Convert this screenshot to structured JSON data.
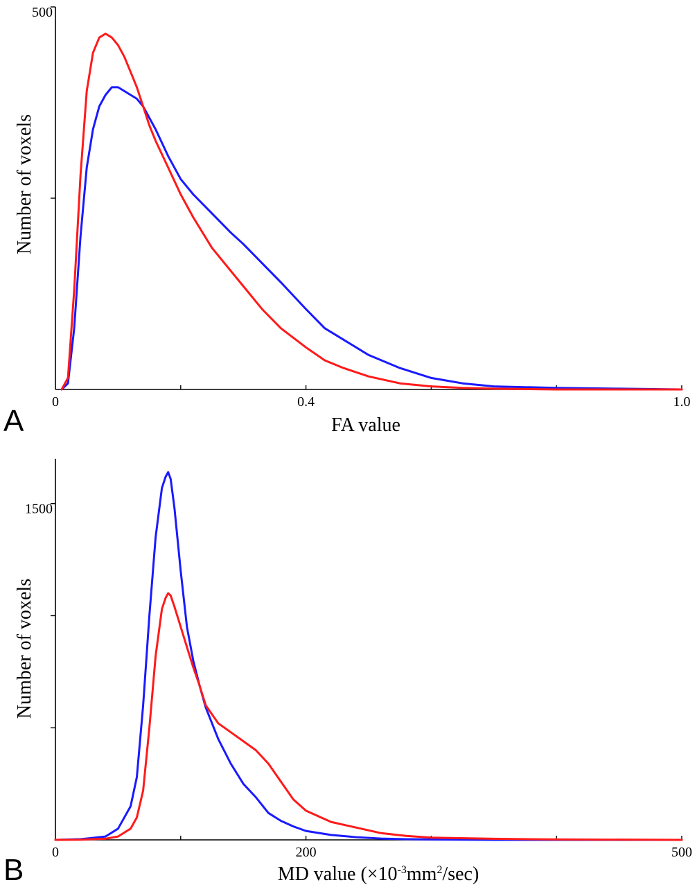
{
  "chart_data": [
    {
      "panel": "A",
      "type": "line",
      "xlabel": "FA value",
      "ylabel": "Number of voxels",
      "xlim": [
        0,
        1.0
      ],
      "ylim": [
        0,
        500
      ],
      "x_tick_labels": [
        {
          "value": 0,
          "label": "0"
        },
        {
          "value": 0.4,
          "label": "0.4"
        },
        {
          "value": 1.0,
          "label": "1.0"
        }
      ],
      "x_minor_ticks": [
        0.2,
        0.6,
        0.8
      ],
      "y_tick_labels": [
        {
          "value": 500,
          "label": "500"
        }
      ],
      "y_minor_ticks": [
        250
      ],
      "series": [
        {
          "color": "#1a1aff",
          "x": [
            0.01,
            0.02,
            0.03,
            0.04,
            0.05,
            0.06,
            0.07,
            0.08,
            0.09,
            0.1,
            0.11,
            0.12,
            0.13,
            0.14,
            0.15,
            0.16,
            0.18,
            0.2,
            0.22,
            0.25,
            0.28,
            0.3,
            0.33,
            0.36,
            0.4,
            0.43,
            0.46,
            0.5,
            0.55,
            0.6,
            0.65,
            0.7,
            0.8,
            0.9,
            1.0
          ],
          "y": [
            0,
            8,
            80,
            200,
            290,
            340,
            370,
            385,
            395,
            395,
            390,
            385,
            380,
            370,
            355,
            340,
            305,
            275,
            255,
            230,
            205,
            190,
            165,
            140,
            105,
            80,
            65,
            45,
            28,
            15,
            8,
            4,
            2,
            1,
            0
          ]
        },
        {
          "color": "#ff1a1a",
          "x": [
            0.01,
            0.02,
            0.03,
            0.04,
            0.05,
            0.06,
            0.07,
            0.08,
            0.09,
            0.1,
            0.11,
            0.12,
            0.13,
            0.14,
            0.15,
            0.16,
            0.18,
            0.2,
            0.22,
            0.25,
            0.28,
            0.3,
            0.33,
            0.36,
            0.4,
            0.43,
            0.46,
            0.5,
            0.55,
            0.6,
            0.65,
            0.7,
            0.8,
            0.9,
            1.0
          ],
          "y": [
            0,
            15,
            130,
            280,
            390,
            440,
            460,
            465,
            460,
            450,
            435,
            415,
            395,
            370,
            345,
            325,
            290,
            255,
            225,
            185,
            155,
            135,
            105,
            80,
            55,
            38,
            28,
            17,
            8,
            4,
            2,
            1,
            0,
            0,
            0
          ]
        }
      ]
    },
    {
      "panel": "B",
      "type": "line",
      "xlabel": "MD value (×10",
      "xlabel_sup": "-3",
      "xlabel_mid": "mm",
      "xlabel_sup2": "2",
      "xlabel_end": "/sec)",
      "ylabel": "Number of voxels",
      "xlim": [
        0,
        500
      ],
      "ylim": [
        0,
        1700
      ],
      "x_tick_labels": [
        {
          "value": 0,
          "label": "0"
        },
        {
          "value": 200,
          "label": "200"
        },
        {
          "value": 500,
          "label": "500"
        }
      ],
      "x_minor_ticks": [
        100,
        300,
        400
      ],
      "y_tick_labels": [
        {
          "value": 1500,
          "label": "1500"
        }
      ],
      "y_minor_ticks": [
        500,
        1000
      ],
      "series": [
        {
          "color": "#1a1aff",
          "x": [
            0,
            20,
            40,
            50,
            60,
            65,
            70,
            75,
            80,
            85,
            88,
            90,
            92,
            95,
            100,
            105,
            110,
            115,
            120,
            130,
            140,
            150,
            160,
            170,
            180,
            190,
            200,
            220,
            240,
            260,
            280,
            300,
            350,
            400,
            500
          ],
          "y": [
            0,
            3,
            15,
            50,
            150,
            280,
            600,
            1000,
            1350,
            1570,
            1620,
            1640,
            1610,
            1480,
            1200,
            950,
            800,
            690,
            590,
            450,
            340,
            250,
            190,
            120,
            85,
            60,
            40,
            22,
            12,
            6,
            3,
            2,
            0,
            0,
            0
          ]
        },
        {
          "color": "#ff1a1a",
          "x": [
            0,
            20,
            40,
            50,
            60,
            65,
            70,
            75,
            80,
            85,
            88,
            90,
            92,
            95,
            100,
            105,
            110,
            115,
            120,
            130,
            140,
            150,
            160,
            170,
            180,
            190,
            200,
            220,
            240,
            260,
            280,
            300,
            350,
            400,
            500
          ],
          "y": [
            0,
            1,
            5,
            15,
            50,
            100,
            220,
            500,
            820,
            1030,
            1080,
            1100,
            1090,
            1040,
            950,
            860,
            770,
            690,
            600,
            520,
            480,
            440,
            400,
            340,
            260,
            180,
            130,
            80,
            55,
            30,
            18,
            10,
            5,
            2,
            0
          ]
        }
      ]
    }
  ],
  "panel_letters": [
    "A",
    "B"
  ]
}
